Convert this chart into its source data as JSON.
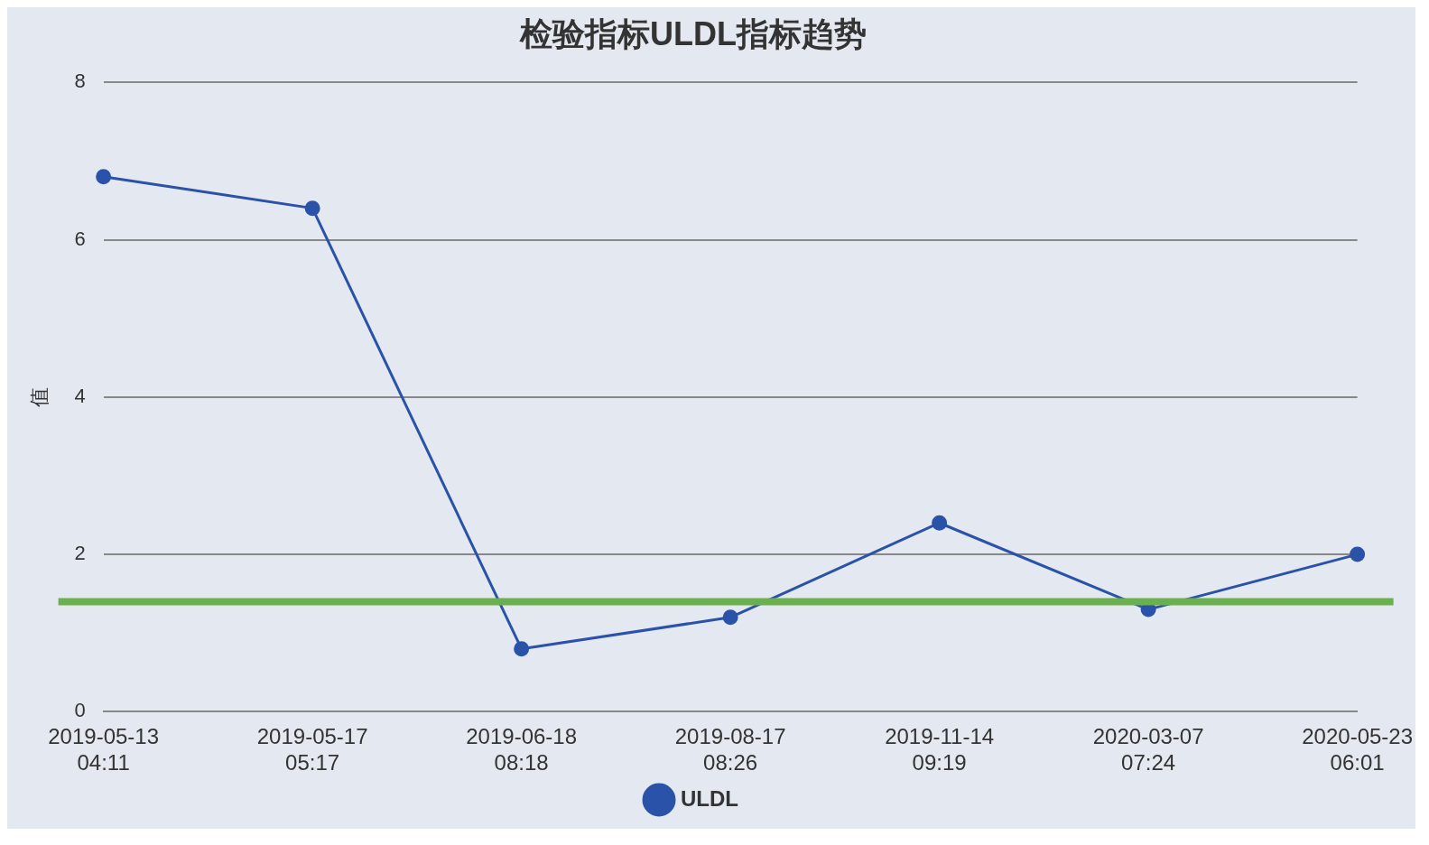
{
  "chart_data": {
    "type": "line",
    "title": "检验指标ULDL指标趋势",
    "ylabel": "值",
    "categories": [
      "2019-05-13 04:11",
      "2019-05-17 05:17",
      "2019-06-18 08:18",
      "2019-08-17 08:26",
      "2019-11-14 09:19",
      "2020-03-07 07:24",
      "2020-05-23 06:01"
    ],
    "series": [
      {
        "name": "ULDL",
        "color": "#2a52a8",
        "values": [
          6.8,
          6.4,
          0.8,
          1.2,
          2.4,
          1.3,
          2.0
        ]
      }
    ],
    "ylim": [
      0,
      8
    ],
    "yticks": [
      0,
      2,
      4,
      6,
      8
    ],
    "grid": "y",
    "legend": "bottom",
    "marker": "circle",
    "line_style": "solid",
    "ref_lines": [
      {
        "axis": "y",
        "value": 1.4,
        "color": "#6ab04c"
      }
    ]
  }
}
